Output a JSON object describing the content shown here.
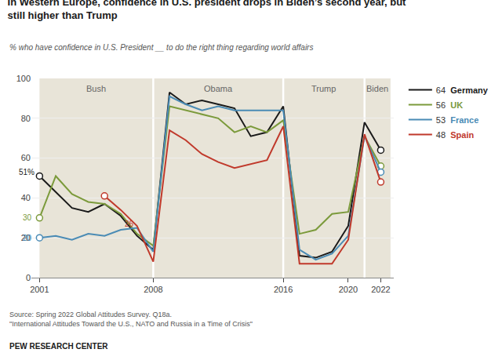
{
  "chart_data": {
    "type": "line",
    "title": "In Western Europe, confidence in U.S. president drops in Biden’s second year, but\nstill higher than Trump",
    "subtitle": "% who have confidence in U.S. President __ to do the right thing regarding world affairs",
    "source": "Source: Spring 2022 Global Attitudes Survey. Q18a.\n\"International Attitudes Toward the U.S., NATO and Russia in a Time of Crisis\"",
    "footer": "PEW RESEARCH CENTER",
    "x": [
      2001,
      2002,
      2003,
      2004,
      2005,
      2006,
      2007,
      2008,
      2009,
      2010,
      2011,
      2012,
      2013,
      2014,
      2015,
      2016,
      2017,
      2018,
      2019,
      2020,
      2021,
      2022
    ],
    "xlim": [
      2000.5,
      2022.8
    ],
    "xticks": [
      2001,
      2008,
      2016,
      2020,
      2022
    ],
    "ylim": [
      0,
      100
    ],
    "yticks": [
      0,
      20,
      40,
      60,
      80,
      100
    ],
    "grid": true,
    "legend": "right",
    "regions": [
      {
        "name": "Bush",
        "xmin": 2001,
        "xmax": 2008,
        "color": "#e8e4d8"
      },
      {
        "name": "Obama",
        "xmin": 2008,
        "xmax": 2016,
        "color": "#e8e4d8"
      },
      {
        "name": "Trump",
        "xmin": 2016,
        "xmax": 2021,
        "color": "#e8e4d8"
      },
      {
        "name": "Biden",
        "xmin": 2021,
        "xmax": 2022.6,
        "color": "#e8e4d8"
      }
    ],
    "series": [
      {
        "name": "Germany",
        "color": "#1a1a1a",
        "label": "64",
        "values": [
          51,
          43,
          35,
          33,
          37,
          31,
          21,
          14,
          93,
          87,
          89,
          87,
          85,
          71,
          73,
          86,
          11,
          10,
          13,
          26,
          78,
          64
        ],
        "annotation": {
          "text": "51%",
          "x": 2001,
          "y": 53
        }
      },
      {
        "name": "UK",
        "color": "#7b9a3b",
        "label": "56",
        "values": [
          30,
          51,
          42,
          38,
          37,
          32,
          22,
          16,
          86,
          84,
          82,
          80,
          73,
          76,
          73,
          79,
          22,
          24,
          32,
          33,
          71,
          56
        ],
        "annotation": {
          "text": "30",
          "x": 2000.85,
          "y": 30
        }
      },
      {
        "name": "France",
        "color": "#4a8bb5",
        "label": "53",
        "values": [
          20,
          21,
          19,
          22,
          21,
          24,
          25,
          13,
          91,
          87,
          84,
          86,
          84,
          84,
          84,
          84,
          14,
          9,
          12,
          21,
          71,
          53
        ],
        "annotation": {
          "text": "20",
          "x": 2000.85,
          "y": 20
        }
      },
      {
        "name": "Spain",
        "color": "#c0392b",
        "label": "48",
        "values": [
          null,
          null,
          null,
          null,
          41,
          34,
          26,
          8,
          74,
          69,
          62,
          58,
          55,
          57,
          59,
          76,
          7,
          7,
          7,
          19,
          72,
          48
        ],
        "annotation": {
          "text": "26",
          "x": 2007.1,
          "y": 27
        }
      }
    ]
  }
}
